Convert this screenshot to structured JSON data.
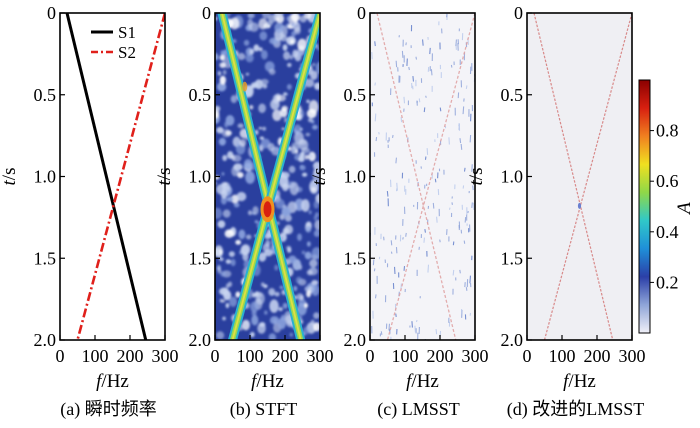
{
  "chart_data": [
    {
      "type": "line",
      "caption": "(a) 瞬时频率",
      "xlabel_italic": "f",
      "xlabel_unit": "/Hz",
      "ylabel_italic": "t",
      "ylabel_unit": "/s",
      "xlim": [
        0,
        300
      ],
      "ylim": [
        0,
        2.0
      ],
      "y_inverted": true,
      "xticks": [
        "0",
        "100",
        "200",
        "300"
      ],
      "yticks": [
        "0",
        "0.5",
        "1.0",
        "1.5",
        "2.0"
      ],
      "legend_position": "top-right",
      "series": [
        {
          "name": "S1",
          "color": "#000000",
          "style": "solid",
          "x": [
            20,
            245
          ],
          "y": [
            0,
            2.0
          ]
        },
        {
          "name": "S2",
          "color": "#e0201b",
          "style": "dashdot",
          "x": [
            300,
            50
          ],
          "y": [
            0,
            2.0
          ]
        }
      ]
    },
    {
      "type": "heatmap",
      "caption": "(b) STFT",
      "xlabel_italic": "f",
      "xlabel_unit": "/Hz",
      "ylabel_italic": "t",
      "ylabel_unit": "/s",
      "xlim": [
        0,
        300
      ],
      "ylim": [
        0,
        2.0
      ],
      "xticks": [
        "0",
        "100",
        "200",
        "300"
      ],
      "yticks": [
        "0",
        "0.5",
        "1.0",
        "1.5",
        "2.0"
      ],
      "background": "noisy",
      "ridges": [
        {
          "x": [
            20,
            245
          ],
          "y": [
            0,
            2.0
          ]
        },
        {
          "x": [
            300,
            50
          ],
          "y": [
            0,
            2.0
          ]
        }
      ],
      "peak": {
        "x": 150,
        "y": 1.2
      }
    },
    {
      "type": "heatmap",
      "caption": "(c) LMSST",
      "xlabel_italic": "f",
      "xlabel_unit": "/Hz",
      "ylabel_italic": "t",
      "ylabel_unit": "/s",
      "xlim": [
        0,
        300
      ],
      "ylim": [
        0,
        2.0
      ],
      "xticks": [
        "0",
        "100",
        "200",
        "300"
      ],
      "yticks": [
        "0",
        "0.5",
        "1.0",
        "1.5",
        "2.0"
      ],
      "background": "speckled",
      "ridges": [
        {
          "x": [
            20,
            245
          ],
          "y": [
            0,
            2.0
          ]
        },
        {
          "x": [
            300,
            50
          ],
          "y": [
            0,
            2.0
          ]
        }
      ]
    },
    {
      "type": "heatmap",
      "caption": "(d) 改进的LMSST",
      "xlabel_italic": "f",
      "xlabel_unit": "/Hz",
      "ylabel_italic": "t",
      "ylabel_unit": "/s",
      "xlim": [
        0,
        300
      ],
      "ylim": [
        0,
        2.0
      ],
      "xticks": [
        "0",
        "100",
        "200",
        "300"
      ],
      "yticks": [
        "0",
        "0.5",
        "1.0",
        "1.5",
        "2.0"
      ],
      "background": "clean",
      "ridges": [
        {
          "x": [
            20,
            245
          ],
          "y": [
            0,
            2.0
          ]
        },
        {
          "x": [
            300,
            50
          ],
          "y": [
            0,
            2.0
          ]
        }
      ]
    }
  ],
  "colorbar": {
    "label": "A",
    "ticks": [
      "0.2",
      "0.4",
      "0.6",
      "0.8"
    ],
    "tick_values": [
      0.2,
      0.4,
      0.6,
      0.8
    ],
    "range": [
      0,
      1.0
    ],
    "colors": [
      "#f0f0f8",
      "#8fa5d8",
      "#2b3fa8",
      "#1f8fd8",
      "#30c8c8",
      "#8fd848",
      "#f0e020",
      "#f08020",
      "#d82010",
      "#8a0000"
    ]
  }
}
